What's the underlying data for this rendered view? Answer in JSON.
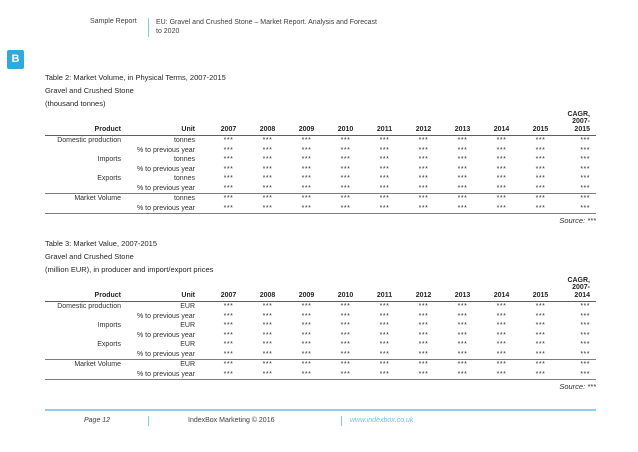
{
  "header": {
    "doc_type": "Sample Report",
    "doc_title": "EU: Gravel and Crushed Stone – Market Report. Analysis and Forecast\nto 2020"
  },
  "badge": {
    "letter": "B"
  },
  "colors": {
    "accent_blue": "#2fa9de",
    "light_blue_divider": "#7fcbe8",
    "footer_line_blue": "#8ed0ec",
    "link_blue": "#6fc2e6",
    "table_rule_gray": "#7d7d7d"
  },
  "tables": [
    {
      "title": "Table 2: Market Volume, in Physical Terms, 2007-2015",
      "subtitle": "Gravel and Crushed Stone",
      "unit_note": "(thousand tonnes)",
      "columns": {
        "product": "Product",
        "unit": "Unit",
        "years": [
          "2007",
          "2008",
          "2009",
          "2010",
          "2011",
          "2012",
          "2013",
          "2014",
          "2015"
        ],
        "cagr": "CAGR,\n2007-\n2015"
      },
      "rows": [
        {
          "product": "Domestic production",
          "unit": "tonnes",
          "section_start": false,
          "values": [
            "***",
            "***",
            "***",
            "***",
            "***",
            "***",
            "***",
            "***",
            "***",
            "***"
          ]
        },
        {
          "product": "",
          "unit": "% to previous year",
          "section_start": false,
          "values": [
            "***",
            "***",
            "***",
            "***",
            "***",
            "***",
            "***",
            "***",
            "***",
            "***"
          ]
        },
        {
          "product": "Imports",
          "unit": "tonnes",
          "section_start": false,
          "values": [
            "***",
            "***",
            "***",
            "***",
            "***",
            "***",
            "***",
            "***",
            "***",
            "***"
          ]
        },
        {
          "product": "",
          "unit": "% to previous year",
          "section_start": false,
          "values": [
            "***",
            "***",
            "***",
            "***",
            "***",
            "***",
            "***",
            "***",
            "***",
            "***"
          ]
        },
        {
          "product": "Exports",
          "unit": "tonnes",
          "section_start": false,
          "values": [
            "***",
            "***",
            "***",
            "***",
            "***",
            "***",
            "***",
            "***",
            "***",
            "***"
          ]
        },
        {
          "product": "",
          "unit": "% to previous year",
          "section_start": false,
          "values": [
            "***",
            "***",
            "***",
            "***",
            "***",
            "***",
            "***",
            "***",
            "***",
            "***"
          ]
        },
        {
          "product": "Market Volume",
          "unit": "tonnes",
          "section_start": true,
          "values": [
            "***",
            "***",
            "***",
            "***",
            "***",
            "***",
            "***",
            "***",
            "***",
            "***"
          ]
        },
        {
          "product": "",
          "unit": "% to previous year",
          "section_start": false,
          "values": [
            "***",
            "***",
            "***",
            "***",
            "***",
            "***",
            "***",
            "***",
            "***",
            "***"
          ]
        }
      ],
      "source": "Source: ***"
    },
    {
      "title": "Table 3: Market Value, 2007-2015",
      "subtitle": "Gravel and Crushed Stone",
      "unit_note": "(million EUR), in producer and import/export prices",
      "columns": {
        "product": "Product",
        "unit": "Unit",
        "years": [
          "2007",
          "2008",
          "2009",
          "2010",
          "2011",
          "2012",
          "2013",
          "2014",
          "2015"
        ],
        "cagr": "CAGR,\n2007-\n2014"
      },
      "rows": [
        {
          "product": "Domestic production",
          "unit": "EUR",
          "section_start": false,
          "values": [
            "***",
            "***",
            "***",
            "***",
            "***",
            "***",
            "***",
            "***",
            "***",
            "***"
          ]
        },
        {
          "product": "",
          "unit": "% to previous year",
          "section_start": false,
          "values": [
            "***",
            "***",
            "***",
            "***",
            "***",
            "***",
            "***",
            "***",
            "***",
            "***"
          ]
        },
        {
          "product": "Imports",
          "unit": "EUR",
          "section_start": false,
          "values": [
            "***",
            "***",
            "***",
            "***",
            "***",
            "***",
            "***",
            "***",
            "***",
            "***"
          ]
        },
        {
          "product": "",
          "unit": "% to previous year",
          "section_start": false,
          "values": [
            "***",
            "***",
            "***",
            "***",
            "***",
            "***",
            "***",
            "***",
            "***",
            "***"
          ]
        },
        {
          "product": "Exports",
          "unit": "EUR",
          "section_start": false,
          "values": [
            "***",
            "***",
            "***",
            "***",
            "***",
            "***",
            "***",
            "***",
            "***",
            "***"
          ]
        },
        {
          "product": "",
          "unit": "% to previous year",
          "section_start": false,
          "values": [
            "***",
            "***",
            "***",
            "***",
            "***",
            "***",
            "***",
            "***",
            "***",
            "***"
          ]
        },
        {
          "product": "Market Volume",
          "unit": "EUR",
          "section_start": true,
          "values": [
            "***",
            "***",
            "***",
            "***",
            "***",
            "***",
            "***",
            "***",
            "***",
            "***"
          ]
        },
        {
          "product": "",
          "unit": "% to previous year",
          "section_start": false,
          "values": [
            "***",
            "***",
            "***",
            "***",
            "***",
            "***",
            "***",
            "***",
            "***",
            "***"
          ]
        }
      ],
      "source": "Source: ***"
    }
  ],
  "footer": {
    "page_label": "Page 12",
    "center": "IndexBox Marketing © 2016",
    "link": "www.indexbox.co.uk"
  }
}
